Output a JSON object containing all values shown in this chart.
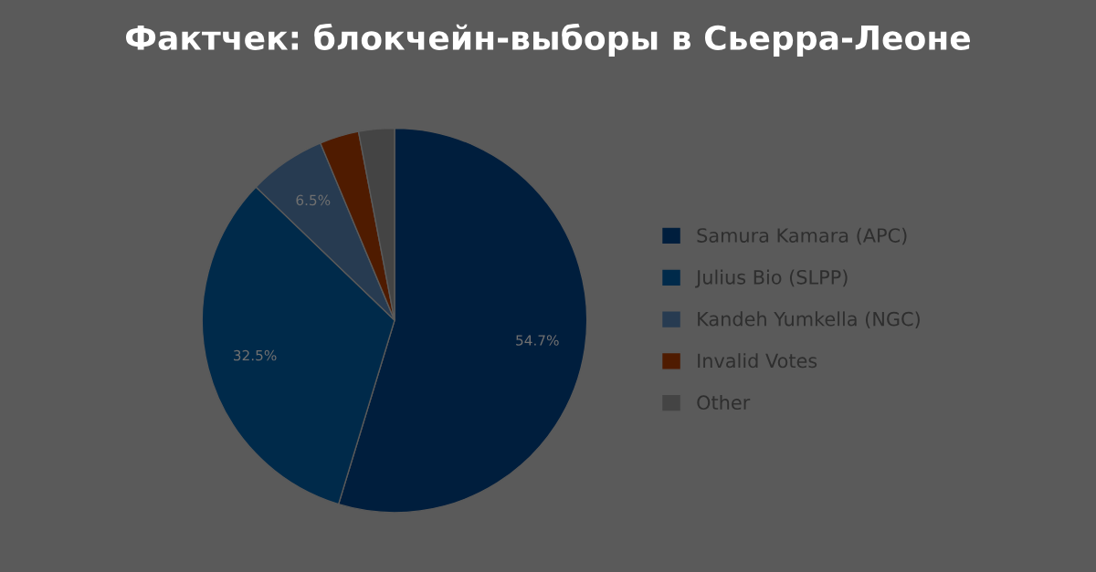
{
  "chart_data": {
    "type": "pie",
    "title": "Фактчек: блокчейн-выборы в Сьерра-Леоне",
    "categories": [
      "Samura Kamara (APC)",
      "Julius Bio (SLPP)",
      "Kandeh Yumkella (NGC)",
      "Invalid Votes",
      "Other"
    ],
    "values": [
      54.7,
      32.5,
      6.5,
      3.3,
      3.0
    ],
    "value_labels": [
      "54.7%",
      "32.5%",
      "6.5%",
      null,
      null
    ],
    "colors": [
      "#001e3d",
      "#002a4a",
      "#273b51",
      "#4f1b00",
      "#444444"
    ],
    "legend": "right"
  }
}
